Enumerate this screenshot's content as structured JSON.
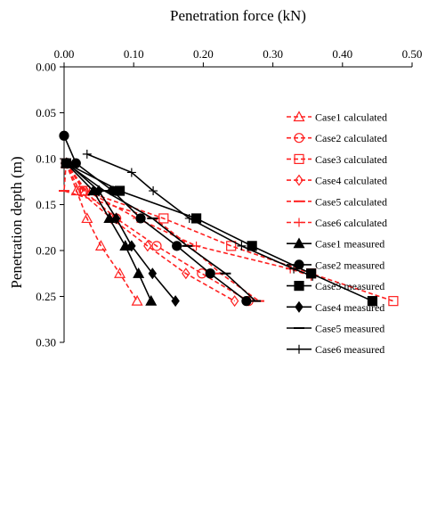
{
  "chart_data": {
    "type": "line",
    "title": "",
    "xlabel": "Penetration force (kN)",
    "ylabel": "Penetration depth (m)",
    "xlim": [
      0,
      0.5
    ],
    "ylim": [
      0,
      0.3
    ],
    "x_ticks": [
      "0.00",
      "0.10",
      "0.20",
      "0.30",
      "0.40",
      "0.50"
    ],
    "y_ticks": [
      "0.00",
      "0.05",
      "0.10",
      "0.15",
      "0.20",
      "0.25",
      "0.30"
    ],
    "y_reversed": true,
    "x_axis_position": "top",
    "grid": false,
    "legend_position": "right",
    "series": [
      {
        "name": "Case1 calculated",
        "kind": "calculated",
        "marker": "triangle",
        "color": "#ff2020",
        "points": [
          [
            0.003,
            0.105
          ],
          [
            0.018,
            0.135
          ],
          [
            0.033,
            0.165
          ],
          [
            0.053,
            0.195
          ],
          [
            0.08,
            0.225
          ],
          [
            0.105,
            0.255
          ]
        ]
      },
      {
        "name": "Case2 calculated",
        "kind": "calculated",
        "marker": "circle",
        "color": "#ff2020",
        "points": [
          [
            0.003,
            0.105
          ],
          [
            0.028,
            0.135
          ],
          [
            0.075,
            0.165
          ],
          [
            0.133,
            0.195
          ],
          [
            0.198,
            0.225
          ],
          [
            0.265,
            0.255
          ]
        ]
      },
      {
        "name": "Case3 calculated",
        "kind": "calculated",
        "marker": "square",
        "color": "#ff2020",
        "points": [
          [
            0.003,
            0.105
          ],
          [
            0.03,
            0.135
          ],
          [
            0.143,
            0.165
          ],
          [
            0.24,
            0.195
          ],
          [
            0.355,
            0.225
          ],
          [
            0.473,
            0.255
          ]
        ]
      },
      {
        "name": "Case4 calculated",
        "kind": "calculated",
        "marker": "diamond",
        "color": "#ff2020",
        "points": [
          [
            0.003,
            0.105
          ],
          [
            0.022,
            0.135
          ],
          [
            0.068,
            0.165
          ],
          [
            0.12,
            0.195
          ],
          [
            0.175,
            0.225
          ],
          [
            0.245,
            0.255
          ]
        ]
      },
      {
        "name": "Case5 calculated",
        "kind": "calculated",
        "marker": "dash",
        "color": "#ff2020",
        "points": [
          [
            0.003,
            0.105
          ],
          [
            0.0,
            0.135
          ],
          [
            0.13,
            0.165
          ],
          [
            0.18,
            0.195
          ],
          [
            0.225,
            0.225
          ],
          [
            0.28,
            0.255
          ]
        ]
      },
      {
        "name": "Case6 calculated",
        "kind": "calculated",
        "marker": "plus",
        "color": "#ff2020",
        "points": [
          [
            0.003,
            0.105
          ],
          [
            0.032,
            0.135
          ],
          [
            0.105,
            0.165
          ],
          [
            0.19,
            0.195
          ],
          [
            0.325,
            0.22
          ],
          [
            0.355,
            0.228
          ]
        ]
      },
      {
        "name": "Case1 measured",
        "kind": "measured",
        "marker": "triangle",
        "color": "#000000",
        "points": [
          [
            0.003,
            0.105
          ],
          [
            0.042,
            0.135
          ],
          [
            0.065,
            0.165
          ],
          [
            0.088,
            0.195
          ],
          [
            0.107,
            0.225
          ],
          [
            0.125,
            0.255
          ]
        ]
      },
      {
        "name": "Case2 measured",
        "kind": "measured",
        "marker": "circle",
        "color": "#000000",
        "points": [
          [
            0.0,
            0.075
          ],
          [
            0.017,
            0.105
          ],
          [
            0.07,
            0.135
          ],
          [
            0.11,
            0.165
          ],
          [
            0.162,
            0.195
          ],
          [
            0.21,
            0.225
          ],
          [
            0.262,
            0.255
          ]
        ]
      },
      {
        "name": "Case3 measured",
        "kind": "measured",
        "marker": "square",
        "color": "#000000",
        "points": [
          [
            0.003,
            0.105
          ],
          [
            0.08,
            0.135
          ],
          [
            0.19,
            0.165
          ],
          [
            0.27,
            0.195
          ],
          [
            0.355,
            0.225
          ],
          [
            0.443,
            0.255
          ]
        ]
      },
      {
        "name": "Case4 measured",
        "kind": "measured",
        "marker": "diamond",
        "color": "#000000",
        "points": [
          [
            0.005,
            0.105
          ],
          [
            0.05,
            0.135
          ],
          [
            0.075,
            0.165
          ],
          [
            0.097,
            0.195
          ],
          [
            0.127,
            0.225
          ],
          [
            0.16,
            0.255
          ]
        ]
      },
      {
        "name": "Case5 measured",
        "kind": "measured",
        "marker": "dash",
        "color": "#000000",
        "points": [
          [
            0.003,
            0.105
          ],
          [
            0.058,
            0.135
          ],
          [
            0.127,
            0.165
          ],
          [
            0.177,
            0.195
          ],
          [
            0.232,
            0.225
          ],
          [
            0.275,
            0.255
          ]
        ]
      },
      {
        "name": "Case6 measured",
        "kind": "measured",
        "marker": "plus",
        "color": "#000000",
        "points": [
          [
            0.033,
            0.095
          ],
          [
            0.097,
            0.115
          ],
          [
            0.128,
            0.135
          ],
          [
            0.18,
            0.165
          ],
          [
            0.255,
            0.195
          ],
          [
            0.33,
            0.22
          ],
          [
            0.357,
            0.228
          ]
        ]
      }
    ]
  }
}
